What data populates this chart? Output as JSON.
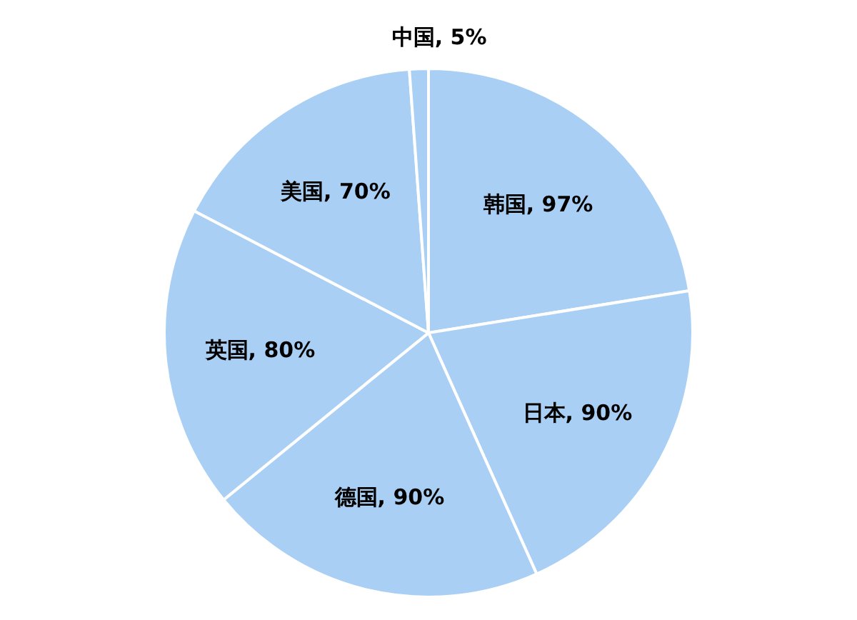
{
  "chart_data": {
    "type": "pie",
    "categories": [
      "韩国",
      "日本",
      "德国",
      "英国",
      "美国",
      "中国"
    ],
    "values": [
      97,
      90,
      90,
      80,
      70,
      5
    ],
    "value_labels": [
      "97%",
      "90%",
      "90%",
      "80%",
      "70%",
      "5%"
    ],
    "colors": [
      "#a9d0f4",
      "#a9d0f4",
      "#a9d0f4",
      "#a9d0f4",
      "#a9d0f4",
      "#a9d0f4"
    ],
    "legend": false
  }
}
